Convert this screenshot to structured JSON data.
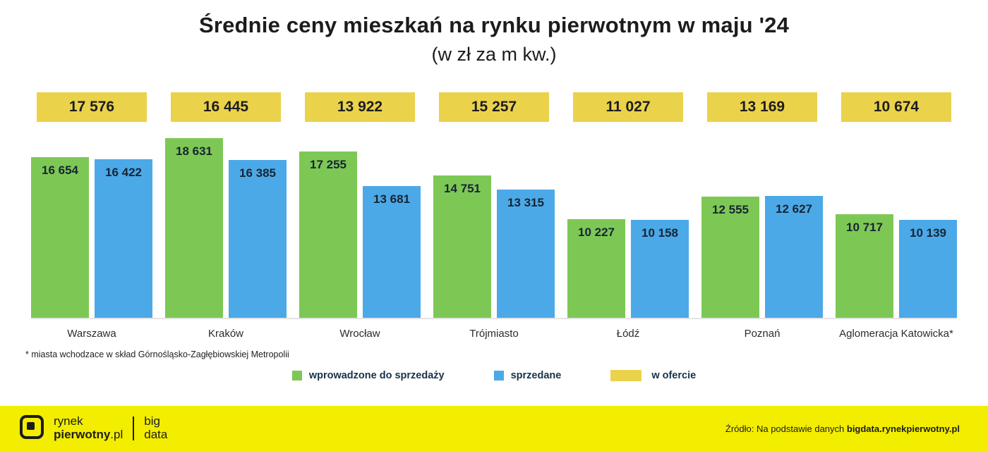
{
  "title": "Średnie ceny mieszkań na rynku pierwotnym w maju '24",
  "subtitle": "(w zł za m kw.)",
  "footnote": "* miasta wchodzace w skład Górnośląsko-Zagłębiowskiej Metropolii",
  "legend": {
    "introduced": "wprowadzone do sprzedaży",
    "sold": "sprzedane",
    "offer": "w ofercie"
  },
  "footer": {
    "brand_line1": "rynek",
    "brand_line2_bold": "pierwotny",
    "brand_line2_suffix": ".pl",
    "bigdata_line1": "big",
    "bigdata_line2": "data",
    "source_prefix": "Źródło: Na podstawie danych ",
    "source_bold": "bigdata.rynekpierwotny.pl"
  },
  "colors": {
    "green": "#7DC855",
    "blue": "#4CA9E8",
    "yellow": "#EBD24B",
    "footer_yellow": "#F3ED00"
  },
  "chart_data": {
    "type": "bar",
    "title": "Średnie ceny mieszkań na rynku pierwotnym w maju '24 (w zł za m kw.)",
    "categories": [
      "Warszawa",
      "Kraków",
      "Wrocław",
      "Trójmiasto",
      "Łódź",
      "Poznań",
      "Aglomeracja Katowicka*"
    ],
    "series": [
      {
        "name": "wprowadzone do sprzedaży",
        "color": "#7DC855",
        "values": [
          16654,
          18631,
          17255,
          14751,
          10227,
          12555,
          10717
        ]
      },
      {
        "name": "sprzedane",
        "color": "#4CA9E8",
        "values": [
          16422,
          16385,
          13681,
          13315,
          10158,
          12627,
          10139
        ]
      },
      {
        "name": "w ofercie",
        "color": "#EBD24B",
        "values": [
          17576,
          16445,
          13922,
          15257,
          11027,
          13169,
          10674
        ]
      }
    ],
    "ylim": [
      0,
      18631
    ],
    "grid": false,
    "legend_position": "bottom",
    "value_labels": true
  }
}
